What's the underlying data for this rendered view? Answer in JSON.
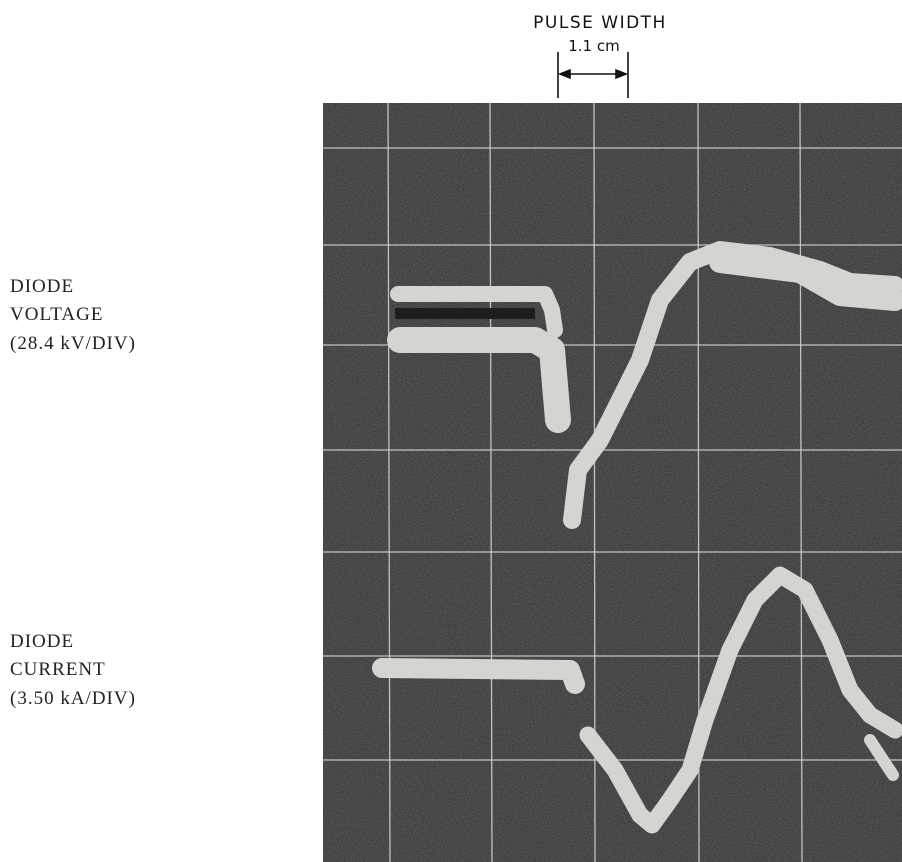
{
  "header": {
    "title": "PULSE WIDTH",
    "measure": "1.1 cm"
  },
  "labels": [
    {
      "lines": [
        "DIODE",
        "VOLTAGE",
        "(28.4 kV/DIV)"
      ]
    },
    {
      "lines": [
        "DIODE",
        "CURRENT",
        "(3.50 kA/DIV)"
      ]
    }
  ]
}
